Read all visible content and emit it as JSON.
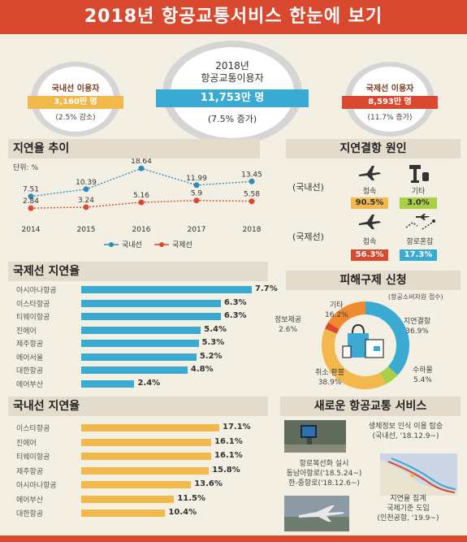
{
  "title": "2018년 항공교통서비스 한눈에 보기",
  "summary": {
    "center": {
      "line1": "2018년",
      "line2": "항공교통이용자",
      "value": "11,753만 명",
      "change": "(7.5% 증가)"
    },
    "domestic": {
      "label": "국내선 이용자",
      "value": "3,160만 명",
      "change": "(2.5% 감소)"
    },
    "international": {
      "label": "국제선 이용자",
      "value": "8,593만 명",
      "change": "(11.7% 증가)"
    }
  },
  "delay_trend": {
    "heading": "지연율 추이",
    "unit": "단위: %",
    "legend_domestic": "국내선",
    "legend_international": "국제선",
    "colors": {
      "domestic": "#2e8bc0",
      "international": "#d9492f"
    }
  },
  "chart_data": {
    "type": "line",
    "categories": [
      "2014",
      "2015",
      "2016",
      "2017",
      "2018"
    ],
    "series": [
      {
        "name": "국내선",
        "values": [
          7.51,
          10.39,
          18.64,
          11.99,
          13.45
        ]
      },
      {
        "name": "국제선",
        "values": [
          2.84,
          3.24,
          5.16,
          5.9,
          5.58
        ]
      }
    ],
    "value_labels": {
      "domestic": [
        "7.51",
        "10.39",
        "18.64",
        "11.99",
        "13.45"
      ],
      "international": [
        "2.84",
        "3.24",
        "5.16",
        "5.9",
        "5.58"
      ]
    },
    "unit": "단위: %",
    "ylim": [
      0,
      20
    ]
  },
  "delay_cause": {
    "heading": "지연결항 원인",
    "domestic_label": "(국내선)",
    "international_label": "(국제선)",
    "domestic": [
      {
        "icon": "airplane-icon",
        "label": "접속",
        "value": "90.5%",
        "color": "#f2b84b"
      },
      {
        "icon": "control-tower-icon",
        "label": "기타",
        "value": "3.0%",
        "color": "#a9cf46"
      }
    ],
    "international": [
      {
        "icon": "airplane-icon",
        "label": "접속",
        "value": "56.3%",
        "color": "#d9492f"
      },
      {
        "icon": "route-icon",
        "label": "항로혼잡",
        "value": "17.3%",
        "color": "#3aaad2"
      }
    ]
  },
  "intl_delay": {
    "heading": "국제선 지연율",
    "color": "#3aaad2",
    "items": [
      {
        "name": "아시아나항공",
        "value": 7.7,
        "label": "7.7%"
      },
      {
        "name": "이스타항공",
        "value": 6.3,
        "label": "6.3%"
      },
      {
        "name": "티웨이항공",
        "value": 6.3,
        "label": "6.3%"
      },
      {
        "name": "진에어",
        "value": 5.4,
        "label": "5.4%"
      },
      {
        "name": "제주항공",
        "value": 5.3,
        "label": "5.3%"
      },
      {
        "name": "에어서울",
        "value": 5.2,
        "label": "5.2%"
      },
      {
        "name": "대한항공",
        "value": 4.8,
        "label": "4.8%"
      },
      {
        "name": "에어부산",
        "value": 2.4,
        "label": "2.4%"
      }
    ]
  },
  "dom_delay": {
    "heading": "국내선 지연율",
    "color": "#f2b84b",
    "items": [
      {
        "name": "이스타항공",
        "value": 17.1,
        "label": "17.1%"
      },
      {
        "name": "진에어",
        "value": 16.1,
        "label": "16.1%"
      },
      {
        "name": "티웨이항공",
        "value": 16.1,
        "label": "16.1%"
      },
      {
        "name": "제주항공",
        "value": 15.8,
        "label": "15.8%"
      },
      {
        "name": "아시아나항공",
        "value": 13.6,
        "label": "13.6%"
      },
      {
        "name": "에어부산",
        "value": 11.5,
        "label": "11.5%"
      },
      {
        "name": "대한항공",
        "value": 10.4,
        "label": "10.4%"
      }
    ]
  },
  "damage_relief": {
    "heading": "피해구제 신청",
    "note": "(항공소비자원 접수)",
    "segments": [
      {
        "label": "취소·환불",
        "value": 38.9,
        "text": "38.9%",
        "color": "#f2b84b"
      },
      {
        "label": "지연결항",
        "value": 36.9,
        "text": "36.9%",
        "color": "#3aaad2"
      },
      {
        "label": "수하물",
        "value": 5.4,
        "text": "5.4%",
        "color": "#a9cf46"
      },
      {
        "label": "정보제공",
        "value": 2.6,
        "text": "2.6%",
        "color": "#d9492f"
      },
      {
        "label": "기타",
        "value": 16.2,
        "text": "16.2%",
        "color": "#f08a30"
      }
    ]
  },
  "new_services": {
    "heading": "새로운 항공교통 서비스",
    "items": [
      {
        "line1": "생체정보 인식 이용 탑승",
        "line2": "(국내선, '18.12.9~)"
      },
      {
        "line1": "항로복선화 실시",
        "line2": "동남아항로('18.5.24~)",
        "line3": "한-중항로('18.12.6~)"
      },
      {
        "line1": "지연율 집계",
        "line2": "국제기준 도입",
        "line3": "(인천공항, '19.9~)"
      }
    ]
  }
}
